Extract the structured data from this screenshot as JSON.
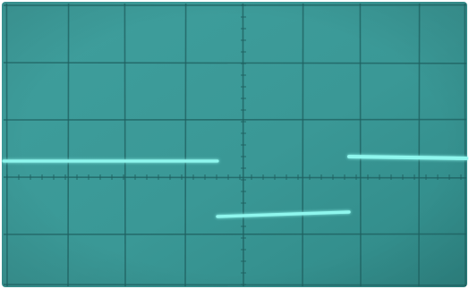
{
  "image": {
    "subject": "oscilloscope-screen-photo",
    "colors": {
      "screen": "#3a9a98",
      "screen_dark": "#2e8482",
      "graticule": "#1f5f5f",
      "trace": "#8ff7ee",
      "frame": "#ffffff"
    },
    "grid": {
      "columns": 8,
      "rows": 5
    },
    "signal": {
      "type": "square-wave-step",
      "levels": [
        "high",
        "low",
        "high"
      ]
    }
  }
}
